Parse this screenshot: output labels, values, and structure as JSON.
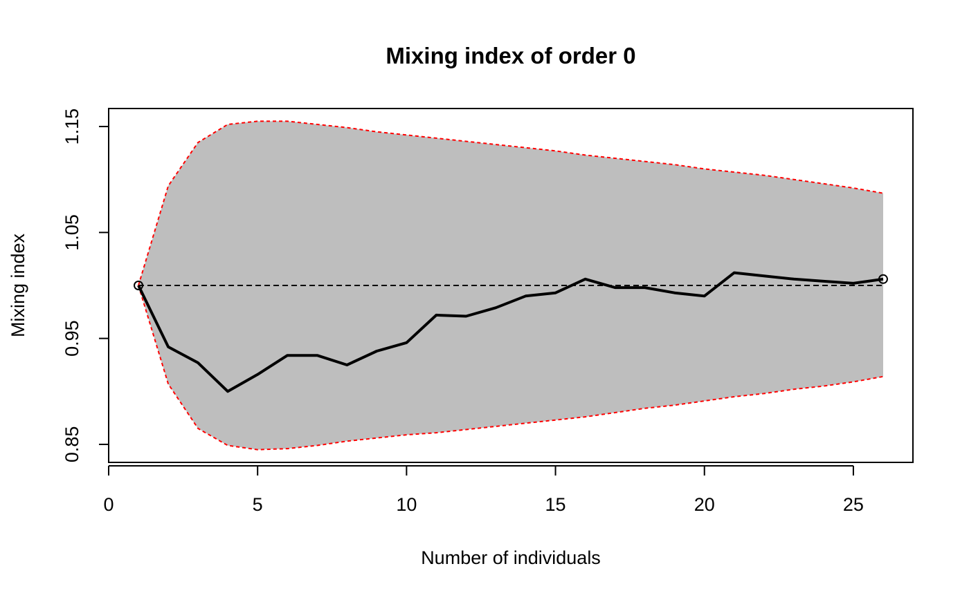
{
  "chart_data": {
    "type": "line",
    "title": "Mixing index of order 0",
    "xlabel": "Number of individuals",
    "ylabel": "Mixing index",
    "xlim": [
      0,
      27
    ],
    "ylim": [
      0.833,
      1.167
    ],
    "x_ticks": [
      0,
      5,
      10,
      15,
      20,
      25
    ],
    "x_tick_labels": [
      "0",
      "5",
      "10",
      "15",
      "20",
      "25"
    ],
    "y_ticks": [
      0.85,
      0.95,
      1.05,
      1.15
    ],
    "y_tick_labels": [
      "0.85",
      "0.95",
      "1.05",
      "1.15"
    ],
    "grid": false,
    "reference_line": {
      "y": 1.0,
      "style": "dashed",
      "color": "#000000"
    },
    "band": {
      "fill_color": "#bebebe",
      "edge_color": "#ff0000",
      "x": [
        1,
        2,
        3,
        4,
        5,
        6,
        7,
        8,
        9,
        10,
        11,
        12,
        13,
        14,
        15,
        16,
        17,
        18,
        19,
        20,
        21,
        22,
        23,
        24,
        25,
        26
      ],
      "upper": [
        1.0,
        1.094,
        1.135,
        1.152,
        1.155,
        1.155,
        1.152,
        1.149,
        1.145,
        1.142,
        1.139,
        1.136,
        1.133,
        1.13,
        1.127,
        1.123,
        1.12,
        1.117,
        1.114,
        1.11,
        1.107,
        1.104,
        1.1,
        1.096,
        1.092,
        1.087
      ],
      "lower": [
        1.0,
        0.907,
        0.865,
        0.849,
        0.845,
        0.846,
        0.849,
        0.853,
        0.856,
        0.859,
        0.861,
        0.864,
        0.867,
        0.87,
        0.873,
        0.876,
        0.88,
        0.884,
        0.887,
        0.891,
        0.895,
        0.898,
        0.902,
        0.905,
        0.909,
        0.914
      ]
    },
    "series": [
      {
        "color": "#000000",
        "x": [
          1,
          2,
          3,
          4,
          5,
          6,
          7,
          8,
          9,
          10,
          11,
          12,
          13,
          14,
          15,
          16,
          17,
          18,
          19,
          20,
          21,
          22,
          23,
          24,
          25,
          26
        ],
        "values": [
          1.0,
          0.942,
          0.927,
          0.9,
          0.916,
          0.934,
          0.934,
          0.925,
          0.938,
          0.946,
          0.972,
          0.971,
          0.979,
          0.99,
          0.993,
          1.006,
          0.998,
          0.998,
          0.993,
          0.99,
          1.012,
          1.009,
          1.006,
          1.004,
          1.002,
          1.006
        ]
      }
    ],
    "end_markers": [
      {
        "x": 1,
        "y": 1.0
      },
      {
        "x": 26,
        "y": 1.006
      }
    ]
  }
}
